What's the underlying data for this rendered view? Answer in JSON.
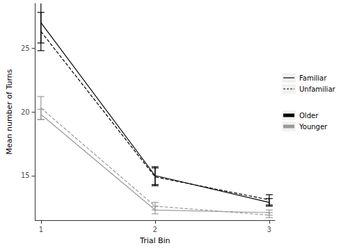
{
  "chart_data": {
    "type": "line",
    "x_label": "Trial Bin",
    "y_label": "Mean number of Turns",
    "x": [
      1,
      2,
      3
    ],
    "xlim": [
      0.95,
      3.05
    ],
    "xticks": [
      1,
      2,
      3
    ],
    "ylim": [
      11.5,
      28.5
    ],
    "yticks": [
      15,
      20,
      25
    ],
    "grid": false,
    "legend": "right",
    "series": [
      {
        "age": "Older",
        "familiarity": "Familiar",
        "color": "#000000",
        "line_style": "solid",
        "values": [
          27.0,
          15.0,
          12.9
        ],
        "error": [
          1.6,
          0.7,
          0.3
        ]
      },
      {
        "age": "Older",
        "familiarity": "Unfamiliar",
        "color": "#000000",
        "line_style": "dashed",
        "values": [
          26.3,
          14.9,
          13.1
        ],
        "error": [
          1.5,
          0.7,
          0.4
        ]
      },
      {
        "age": "Younger",
        "familiarity": "Familiar",
        "color": "#999999",
        "line_style": "solid",
        "values": [
          19.8,
          12.3,
          12.1
        ],
        "error": [
          0.4,
          0.3,
          0.2
        ]
      },
      {
        "age": "Younger",
        "familiarity": "Unfamiliar",
        "color": "#999999",
        "line_style": "dashed",
        "values": [
          20.3,
          12.6,
          11.9
        ],
        "error": [
          0.9,
          0.3,
          0.2
        ]
      }
    ]
  }
}
